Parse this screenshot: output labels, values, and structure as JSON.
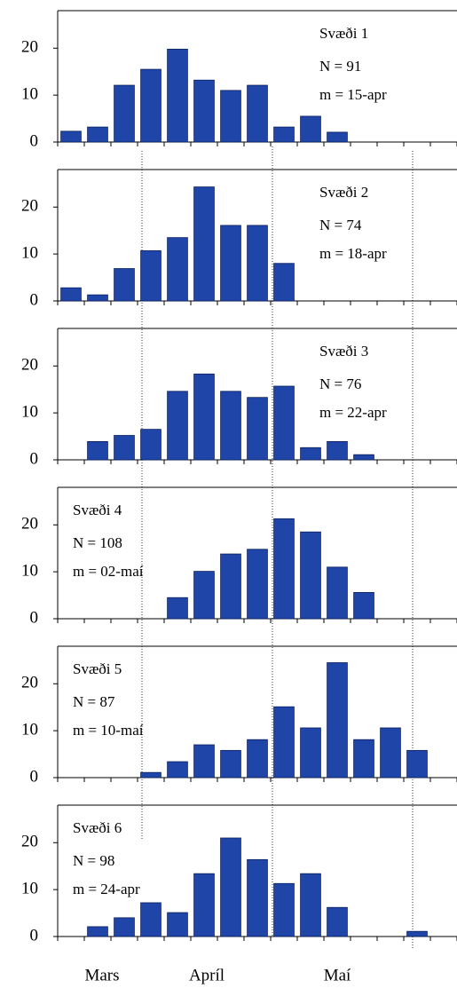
{
  "chart_data": [
    {
      "type": "bar",
      "title": "Svæði 1",
      "annotations": [
        "N = 91",
        "m = 15-apr"
      ],
      "categories": [
        null,
        null,
        null,
        null,
        null,
        null,
        null,
        null,
        null,
        null,
        null,
        null,
        null,
        null,
        null
      ],
      "values": [
        2.3,
        3.2,
        12.1,
        15.5,
        19.8,
        13.2,
        11,
        12.1,
        3.2,
        5.5,
        2.1,
        0,
        0,
        0,
        0
      ],
      "color": "#1f45a8",
      "ylim": [
        0,
        28
      ],
      "yticks": [
        0,
        10,
        20
      ]
    },
    {
      "type": "bar",
      "title": "Svæði 2",
      "annotations": [
        "N = 74",
        "m = 18-apr"
      ],
      "categories": [
        null,
        null,
        null,
        null,
        null,
        null,
        null,
        null,
        null,
        null,
        null,
        null,
        null,
        null,
        null
      ],
      "values": [
        2.8,
        1.3,
        6.9,
        10.7,
        13.5,
        24.3,
        16.1,
        16.1,
        8.0,
        0,
        0,
        0,
        0,
        0,
        0
      ],
      "color": "#1f45a8",
      "ylim": [
        0,
        28
      ],
      "yticks": [
        0,
        10,
        20
      ]
    },
    {
      "type": "bar",
      "title": "Svæði 3",
      "annotations": [
        "N = 76",
        "m = 22-apr"
      ],
      "categories": [
        null,
        null,
        null,
        null,
        null,
        null,
        null,
        null,
        null,
        null,
        null,
        null,
        null,
        null,
        null
      ],
      "values": [
        0,
        3.9,
        5.2,
        6.5,
        14.6,
        18.3,
        14.6,
        13.3,
        15.7,
        2.6,
        3.9,
        1.1,
        0,
        0,
        0
      ],
      "color": "#1f45a8",
      "ylim": [
        0,
        28
      ],
      "yticks": [
        0,
        10,
        20
      ]
    },
    {
      "type": "bar",
      "title": "Svæði 4",
      "annotations": [
        "N = 108",
        "m = 02-maí"
      ],
      "categories": [
        null,
        null,
        null,
        null,
        null,
        null,
        null,
        null,
        null,
        null,
        null,
        null,
        null,
        null,
        null
      ],
      "values": [
        0,
        0,
        0,
        0,
        4.5,
        10.1,
        13.8,
        14.8,
        21.3,
        18.5,
        11.0,
        5.6,
        0,
        0,
        0
      ],
      "color": "#1f45a8",
      "ylim": [
        0,
        28
      ],
      "yticks": [
        0,
        10,
        20
      ]
    },
    {
      "type": "bar",
      "title": "Svæði 5",
      "annotations": [
        "N = 87",
        "m = 10-maí"
      ],
      "categories": [
        null,
        null,
        null,
        null,
        null,
        null,
        null,
        null,
        null,
        null,
        null,
        null,
        null,
        null,
        null
      ],
      "values": [
        0,
        0,
        0,
        1.1,
        3.4,
        7.0,
        5.8,
        8.1,
        15.1,
        10.6,
        24.5,
        8.1,
        10.6,
        5.8,
        0
      ],
      "color": "#1f45a8",
      "ylim": [
        0,
        28
      ],
      "yticks": [
        0,
        10,
        20
      ]
    },
    {
      "type": "bar",
      "title": "Svæði 6",
      "annotations": [
        "N = 98",
        "m = 24-apr"
      ],
      "categories": [
        null,
        null,
        null,
        null,
        null,
        null,
        null,
        null,
        null,
        null,
        null,
        null,
        null,
        null,
        null
      ],
      "values": [
        0,
        2.1,
        4.0,
        7.2,
        5.1,
        13.4,
        21,
        16.4,
        11.3,
        13.4,
        6.2,
        0,
        0,
        1.1,
        0
      ],
      "color": "#1f45a8",
      "ylim": [
        0,
        28
      ],
      "yticks": [
        0,
        10,
        20
      ]
    }
  ],
  "x_axis": {
    "labels": [
      "Mars",
      "Apríl",
      "Maí"
    ]
  }
}
